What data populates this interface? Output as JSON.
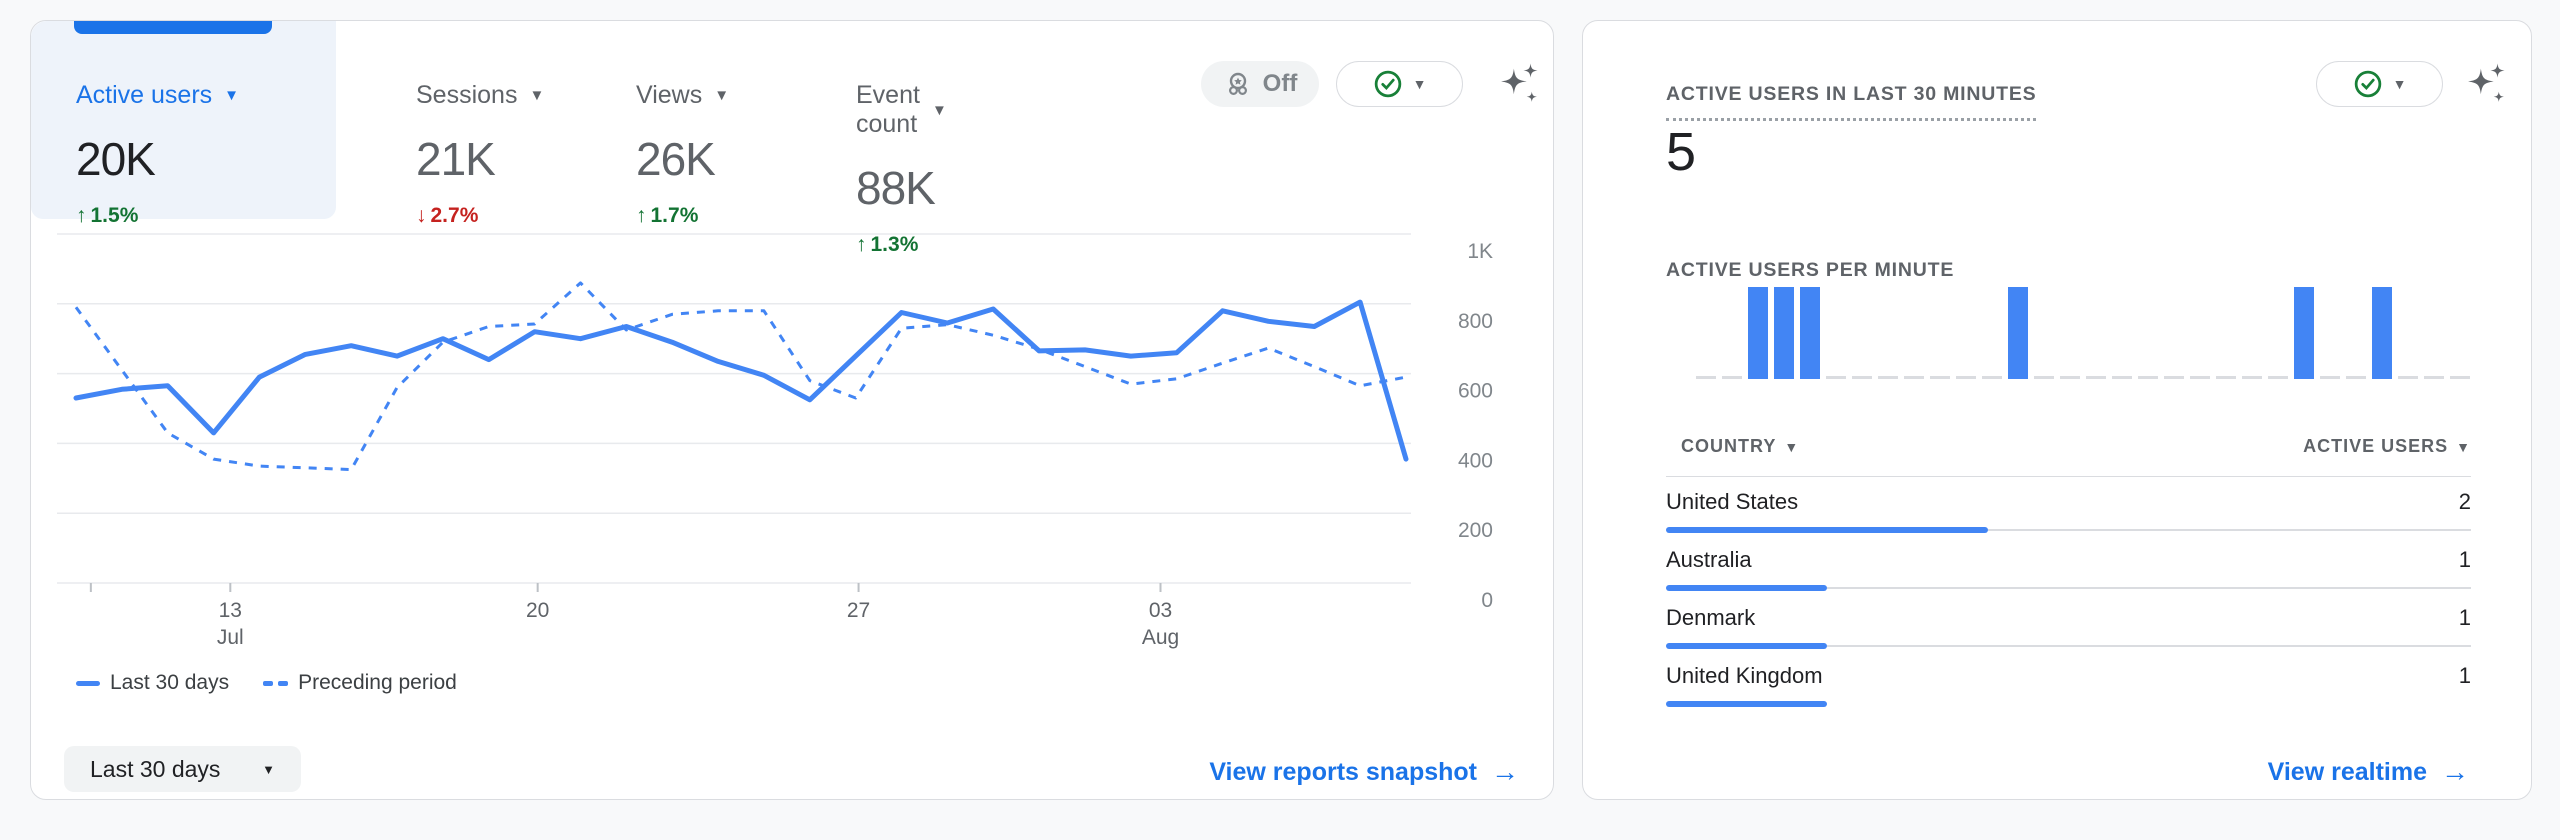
{
  "colors": {
    "accent_blue": "#1a73e8",
    "chart_blue": "#4285f4",
    "positive_green": "#137333",
    "negative_red": "#c5221f",
    "muted_gray": "#5f6368",
    "page_bg": "#f8f9fa"
  },
  "icons": {
    "signals_icon": "medal-icon",
    "status_icon": "check-circle-icon",
    "ai_icon": "sparkle-icon",
    "dropdown_icon": "caret-down-icon",
    "arrow_icon": "right-arrow-icon"
  },
  "left_card": {
    "tabs": [
      {
        "label": "Active users",
        "value": "20K",
        "delta": "1.5%",
        "direction": "up",
        "selected": true
      },
      {
        "label": "Sessions",
        "value": "21K",
        "delta": "2.7%",
        "direction": "down",
        "selected": false
      },
      {
        "label": "Views",
        "value": "26K",
        "delta": "1.7%",
        "direction": "up",
        "selected": false
      },
      {
        "label": "Event count",
        "value": "88K",
        "delta": "1.3%",
        "direction": "up",
        "selected": false
      }
    ],
    "signals_pill_label": "Off",
    "legend": [
      {
        "label": "Last 30 days",
        "style": "solid"
      },
      {
        "label": "Preceding period",
        "style": "dashed"
      }
    ],
    "date_range_button": "Last 30 days",
    "footer_link": "View reports snapshot"
  },
  "right_card": {
    "title": "ACTIVE USERS IN LAST 30 MINUTES",
    "value": "5",
    "per_minute_title": "ACTIVE USERS PER MINUTE",
    "table": {
      "country_header": "COUNTRY",
      "users_header": "ACTIVE USERS",
      "rows": [
        {
          "country": "United States",
          "value": "2",
          "bar_pct": 40,
          "track": true
        },
        {
          "country": "Australia",
          "value": "1",
          "bar_pct": 20,
          "track": true
        },
        {
          "country": "Denmark",
          "value": "1",
          "bar_pct": 20,
          "track": true
        },
        {
          "country": "United Kingdom",
          "value": "1",
          "bar_pct": 20,
          "track": false
        }
      ]
    },
    "footer_link": "View realtime"
  },
  "chart_data": [
    {
      "type": "line",
      "title": "Active users, last 30 days vs preceding period",
      "ylim": [
        0,
        1000
      ],
      "grid": true,
      "legend_position": "bottom",
      "yticks": [
        {
          "label": "1K",
          "value": 1000
        },
        {
          "label": "800",
          "value": 800
        },
        {
          "label": "600",
          "value": 600
        },
        {
          "label": "400",
          "value": 400
        },
        {
          "label": "200",
          "value": 200
        },
        {
          "label": "0",
          "value": 0
        }
      ],
      "xticks": [
        {
          "line1": "13",
          "line2": "Jul",
          "frac": 0.128
        },
        {
          "line1": "20",
          "line2": "",
          "frac": 0.355
        },
        {
          "line1": "27",
          "line2": "",
          "frac": 0.592
        },
        {
          "line1": "03",
          "line2": "Aug",
          "frac": 0.815
        }
      ],
      "edge_tick_fracs": [
        0.025
      ],
      "series": [
        {
          "name": "Last 30 days",
          "style": "solid",
          "values": [
            530,
            555,
            565,
            430,
            590,
            655,
            680,
            650,
            700,
            640,
            720,
            700,
            735,
            690,
            635,
            595,
            525,
            650,
            775,
            745,
            785,
            665,
            668,
            650,
            660,
            780,
            750,
            735,
            805,
            355
          ]
        },
        {
          "name": "Preceding period",
          "style": "dashed",
          "values": [
            790,
            610,
            430,
            355,
            335,
            330,
            325,
            560,
            690,
            735,
            742,
            860,
            725,
            770,
            780,
            780,
            580,
            530,
            730,
            740,
            710,
            670,
            620,
            570,
            585,
            630,
            673,
            620,
            565,
            590
          ]
        }
      ]
    },
    {
      "type": "bar",
      "title": "Active users per minute (last 30 minutes)",
      "ymax": 1,
      "values": [
        0,
        0,
        1,
        1,
        1,
        0,
        0,
        0,
        0,
        0,
        0,
        0,
        1,
        0,
        0,
        0,
        0,
        0,
        0,
        0,
        0,
        0,
        0,
        1,
        0,
        0,
        1,
        0,
        0,
        0
      ]
    },
    {
      "type": "table",
      "columns": [
        "Country",
        "Active users"
      ],
      "rows": [
        [
          "United States",
          2
        ],
        [
          "Australia",
          1
        ],
        [
          "Denmark",
          1
        ],
        [
          "United Kingdom",
          1
        ]
      ]
    }
  ]
}
